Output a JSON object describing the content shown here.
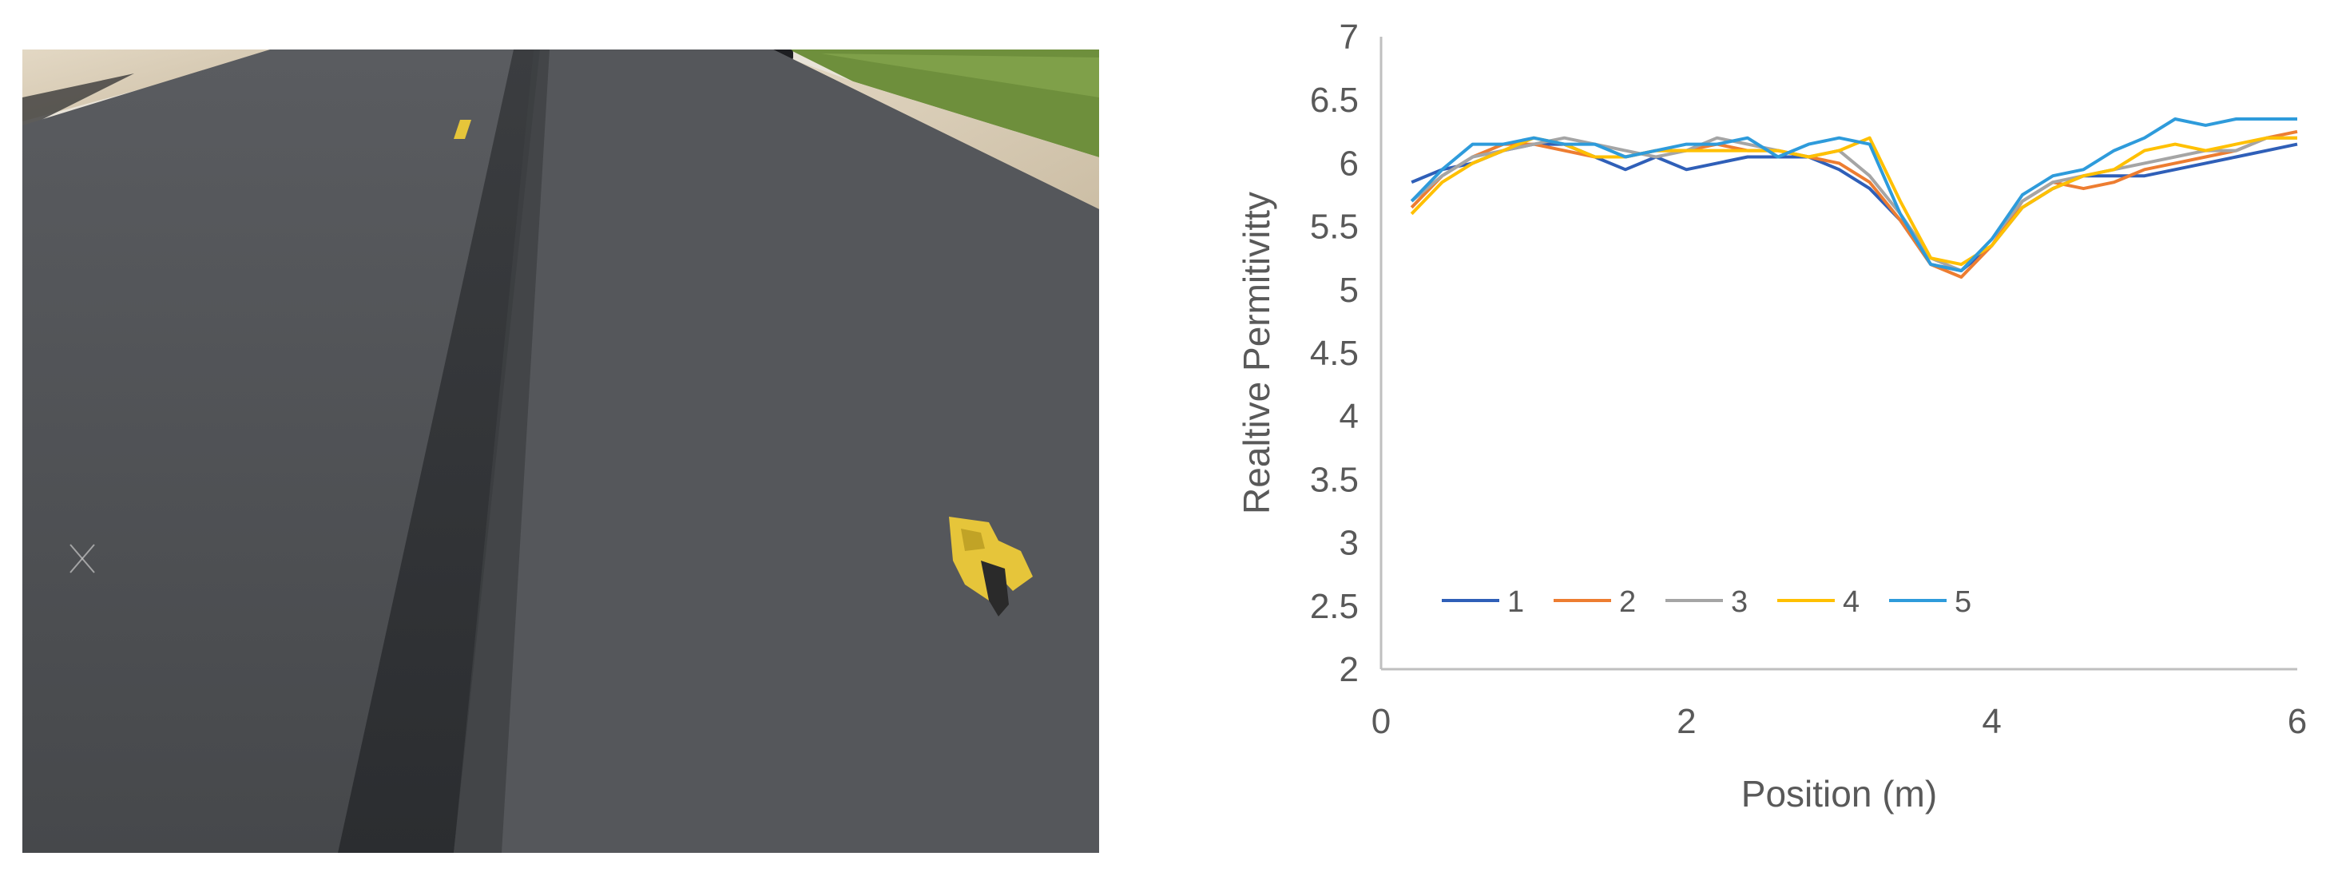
{
  "photo": {
    "description_icon": "asphalt-road-photo-icon",
    "colors": {
      "asphalt": "#4f5154",
      "joint": "#2e3033",
      "shoulder": "#d9cdb8",
      "grass": "#6e8f3c",
      "marker": "#e6c53a",
      "sky": "#f4f1ea"
    }
  },
  "chart_data": {
    "type": "line",
    "title": "",
    "xlabel": "Position (m)",
    "ylabel": "Realtive Permitivitty",
    "xlim": [
      0,
      6
    ],
    "ylim": [
      2,
      7
    ],
    "xticks": [
      "0",
      "2",
      "4",
      "6"
    ],
    "yticks": [
      "2",
      "2.5",
      "3",
      "3.5",
      "4",
      "4.5",
      "5",
      "5.5",
      "6",
      "6.5",
      "7"
    ],
    "grid": false,
    "legend_position": "bottom-left-inside",
    "x": [
      0.2,
      0.4,
      0.6,
      0.8,
      1.0,
      1.2,
      1.4,
      1.6,
      1.8,
      2.0,
      2.2,
      2.4,
      2.6,
      2.8,
      3.0,
      3.2,
      3.4,
      3.6,
      3.8,
      4.0,
      4.2,
      4.4,
      4.6,
      4.8,
      5.0,
      5.2,
      5.4,
      5.6,
      5.8,
      6.0
    ],
    "series": [
      {
        "name": "1",
        "color": "#2f5fb8",
        "values": [
          5.85,
          5.95,
          6.0,
          6.1,
          6.15,
          6.15,
          6.05,
          5.95,
          6.05,
          5.95,
          6.0,
          6.05,
          6.05,
          6.05,
          5.95,
          5.8,
          5.55,
          5.2,
          5.15,
          5.35,
          5.65,
          5.8,
          5.9,
          5.9,
          5.9,
          5.95,
          6.0,
          6.05,
          6.1,
          6.15
        ]
      },
      {
        "name": "2",
        "color": "#ed7d31",
        "values": [
          5.65,
          5.9,
          6.05,
          6.15,
          6.15,
          6.1,
          6.05,
          6.05,
          6.1,
          6.1,
          6.15,
          6.1,
          6.1,
          6.05,
          6.0,
          5.85,
          5.55,
          5.2,
          5.1,
          5.35,
          5.7,
          5.85,
          5.8,
          5.85,
          5.95,
          6.0,
          6.05,
          6.1,
          6.2,
          6.25
        ]
      },
      {
        "name": "3",
        "color": "#a5a5a5",
        "values": [
          5.7,
          5.9,
          6.05,
          6.1,
          6.15,
          6.2,
          6.15,
          6.1,
          6.05,
          6.1,
          6.2,
          6.15,
          6.1,
          6.05,
          6.1,
          5.9,
          5.6,
          5.25,
          5.15,
          5.4,
          5.7,
          5.85,
          5.9,
          5.95,
          6.0,
          6.05,
          6.1,
          6.1,
          6.2,
          6.2
        ]
      },
      {
        "name": "4",
        "color": "#ffc000",
        "values": [
          5.6,
          5.85,
          6.0,
          6.1,
          6.2,
          6.15,
          6.05,
          6.05,
          6.1,
          6.1,
          6.1,
          6.1,
          6.1,
          6.05,
          6.1,
          6.2,
          5.7,
          5.25,
          5.2,
          5.35,
          5.65,
          5.8,
          5.9,
          5.95,
          6.1,
          6.15,
          6.1,
          6.15,
          6.2,
          6.2
        ]
      },
      {
        "name": "5",
        "color": "#2e9bdb",
        "values": [
          5.7,
          5.95,
          6.15,
          6.15,
          6.2,
          6.15,
          6.15,
          6.05,
          6.1,
          6.15,
          6.15,
          6.2,
          6.05,
          6.15,
          6.2,
          6.15,
          5.6,
          5.2,
          5.15,
          5.4,
          5.75,
          5.9,
          5.95,
          6.1,
          6.2,
          6.35,
          6.3,
          6.35,
          6.35,
          6.35
        ]
      }
    ]
  }
}
